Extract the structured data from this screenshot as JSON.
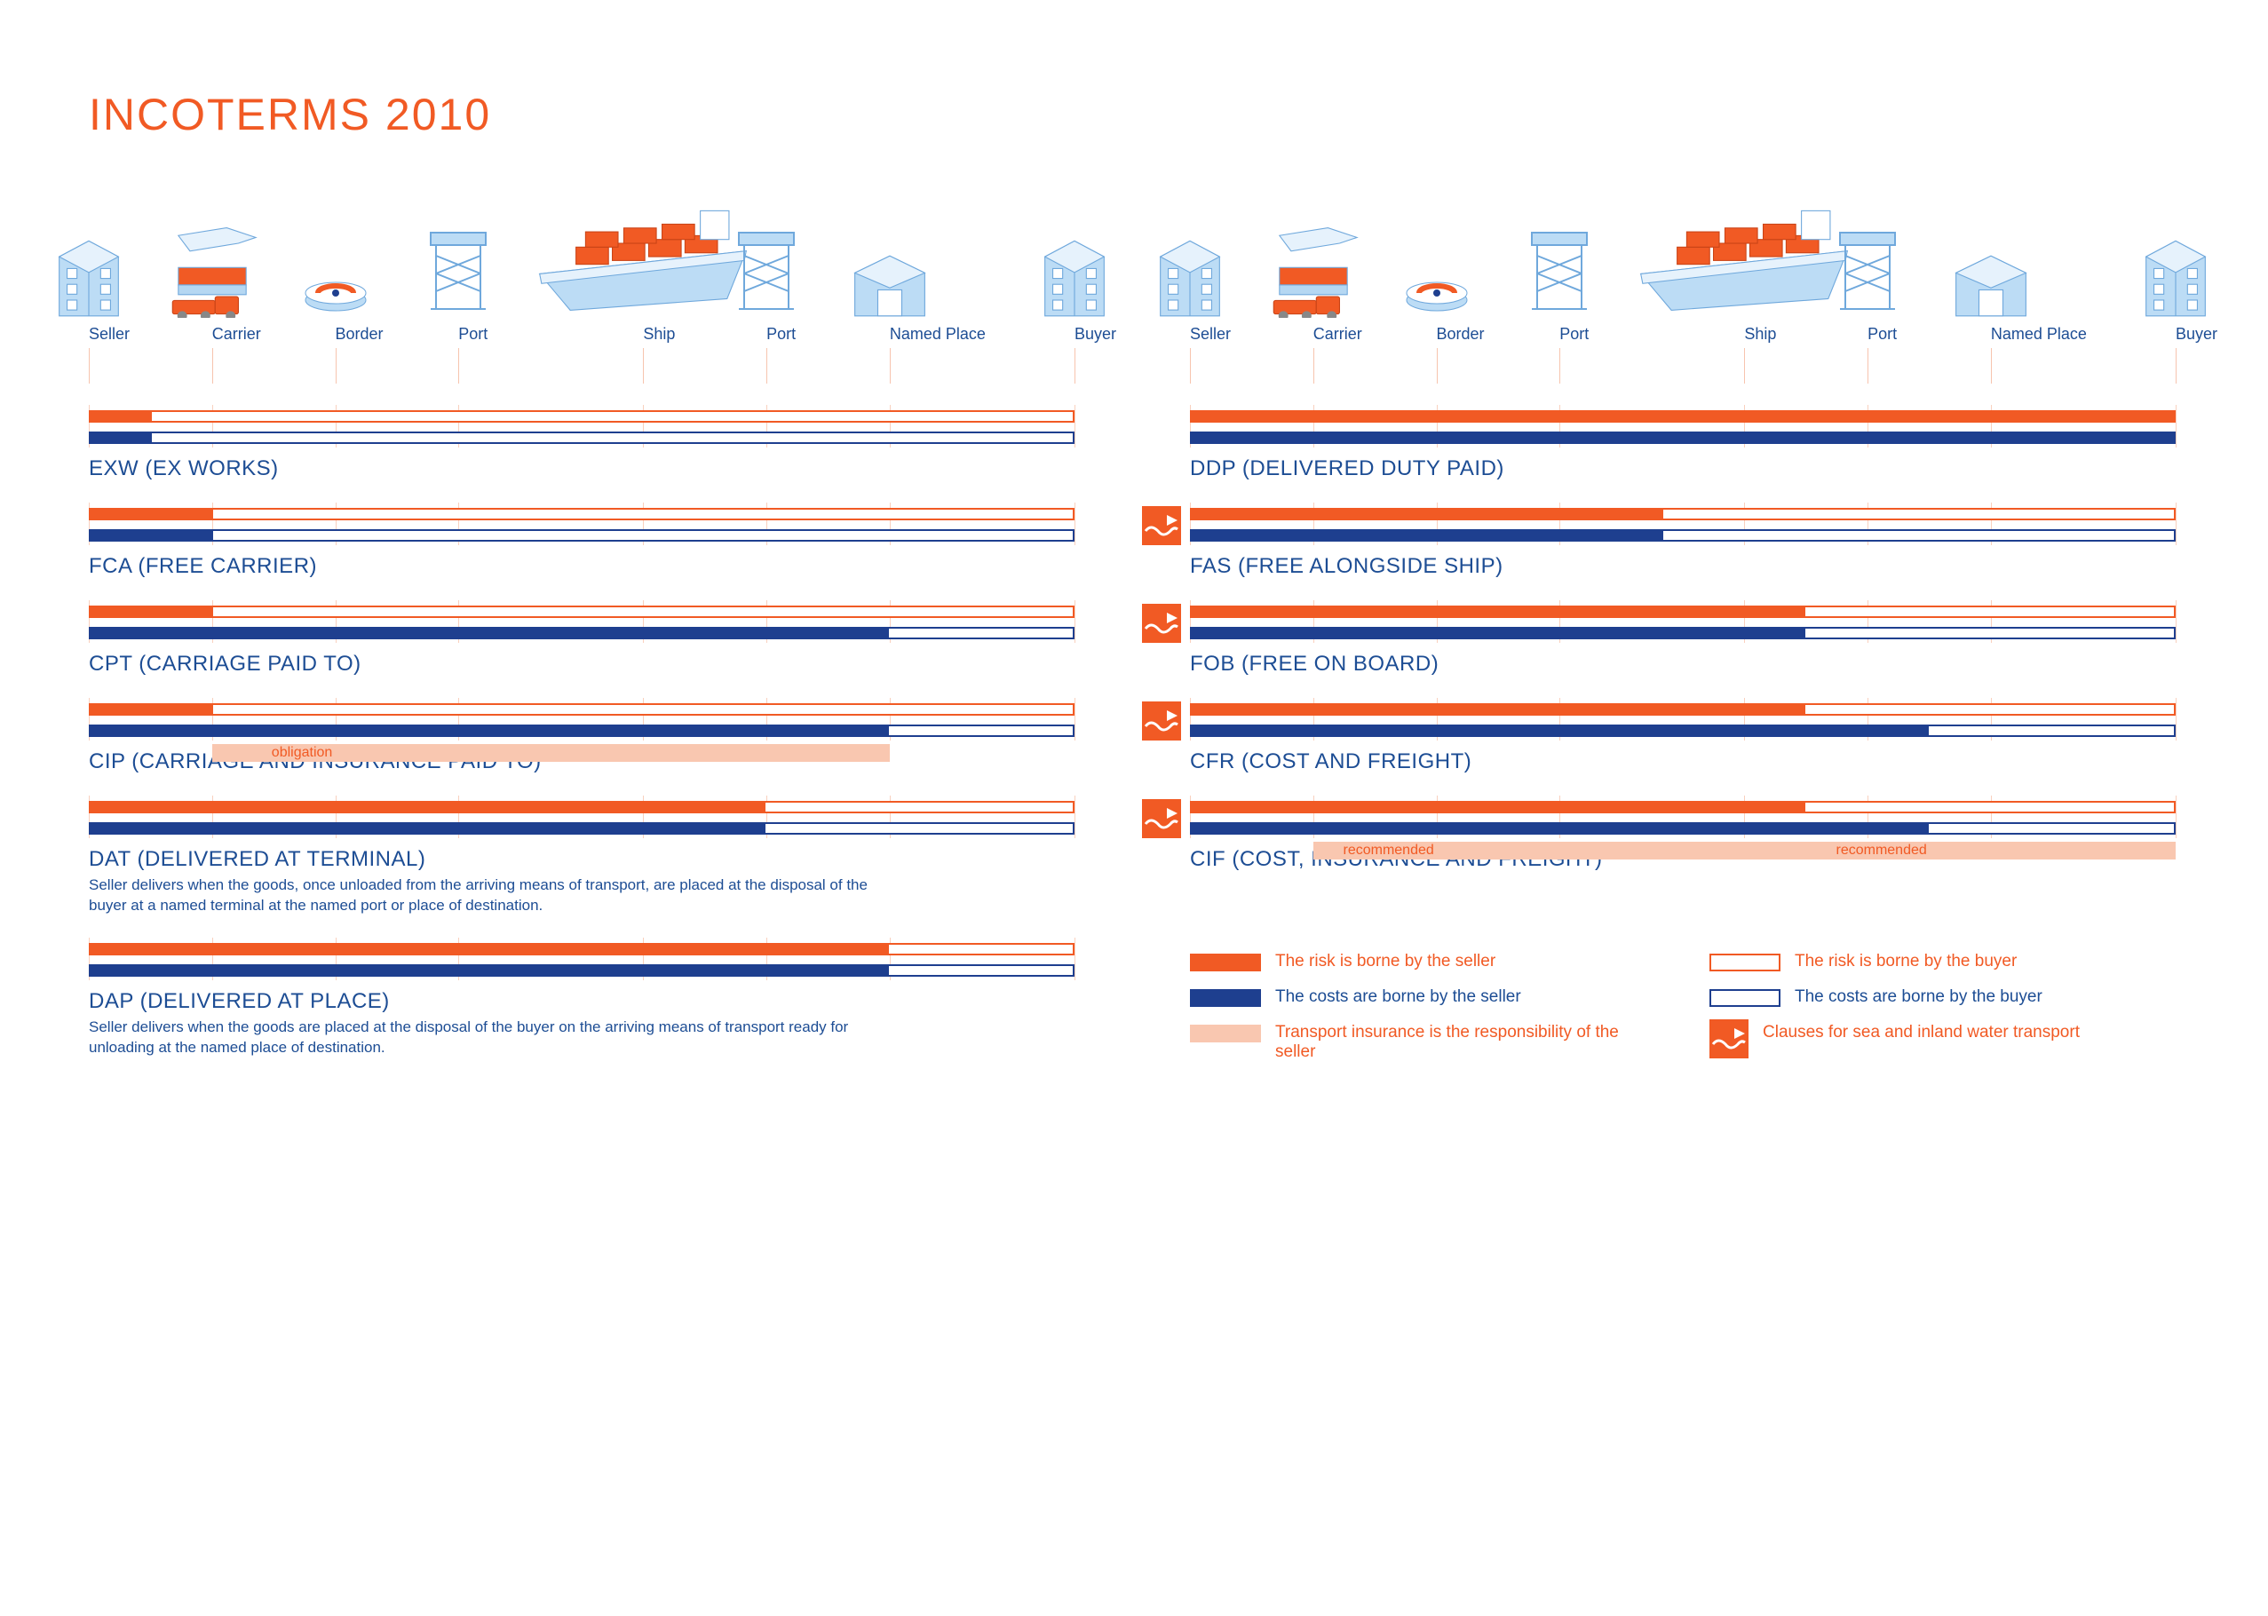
{
  "title": "INCOTERMS 2010",
  "colors": {
    "orange": "#f15a24",
    "blue": "#1e3f8f",
    "ice": "#bcdcf5",
    "pale_orange": "#f9c7b0",
    "outline_orange": "#f15a24",
    "outline_blue": "#1e3f8f",
    "text_blue": "#1d4d94",
    "title_orange": "#f15a24"
  },
  "fonts": {
    "title_size": 50,
    "stage_label_size": 18,
    "term_label_size": 24,
    "desc_size": 17,
    "legend_size": 19
  },
  "stages": [
    {
      "key": "seller",
      "label": "Seller",
      "pct": 0.0
    },
    {
      "key": "carrier",
      "label": "Carrier",
      "pct": 12.5
    },
    {
      "key": "border",
      "label": "Border",
      "pct": 25.0
    },
    {
      "key": "port_out",
      "label": "Port",
      "pct": 37.5
    },
    {
      "key": "ship",
      "label": "Ship",
      "pct": 56.25
    },
    {
      "key": "port_in",
      "label": "Port",
      "pct": 68.75
    },
    {
      "key": "named_place",
      "label": "Named Place",
      "pct": 81.25
    },
    {
      "key": "buyer",
      "label": "Buyer",
      "pct": 100.0
    }
  ],
  "left_terms": [
    {
      "code": "EXW",
      "name": "EX WORKS",
      "risk_pct": 6.25,
      "cost_pct": 6.25,
      "sea": false,
      "desc": "",
      "insurance": null
    },
    {
      "code": "FCA",
      "name": "FREE CARRIER",
      "risk_pct": 12.5,
      "cost_pct": 12.5,
      "sea": false,
      "desc": "",
      "insurance": null
    },
    {
      "code": "CPT",
      "name": "CARRIAGE PAID TO",
      "risk_pct": 12.5,
      "cost_pct": 81.25,
      "sea": false,
      "desc": "",
      "insurance": null
    },
    {
      "code": "CIP",
      "name": "CARRIAGE AND INSURANCE PAID TO",
      "risk_pct": 12.5,
      "cost_pct": 81.25,
      "sea": false,
      "desc": "",
      "insurance": [
        {
          "from_pct": 12.5,
          "to_pct": 81.25,
          "label": "obligation",
          "label_at": 18
        }
      ]
    },
    {
      "code": "DAT",
      "name": "DELIVERED AT TERMINAL",
      "risk_pct": 68.75,
      "cost_pct": 68.75,
      "sea": false,
      "desc": "Seller delivers when the goods, once unloaded from the arriving means of transport, are placed at the disposal of the buyer at a named terminal at the named port or place of destination.",
      "insurance": null
    },
    {
      "code": "DAP",
      "name": "DELIVERED AT PLACE",
      "risk_pct": 81.25,
      "cost_pct": 81.25,
      "sea": false,
      "desc": "Seller delivers when the goods are placed at the disposal of the buyer on the arriving means of transport ready for unloading at the named place of destination.",
      "insurance": null
    }
  ],
  "right_terms": [
    {
      "code": "DDP",
      "name": "DELIVERED DUTY PAID",
      "risk_pct": 100,
      "cost_pct": 100,
      "sea": false,
      "desc": "",
      "insurance": null
    },
    {
      "code": "FAS",
      "name": "FREE ALONGSIDE SHIP",
      "risk_pct": 48,
      "cost_pct": 48,
      "sea": true,
      "desc": "",
      "insurance": null
    },
    {
      "code": "FOB",
      "name": "FREE ON BOARD",
      "risk_pct": 62.5,
      "cost_pct": 62.5,
      "sea": true,
      "desc": "",
      "insurance": null
    },
    {
      "code": "CFR",
      "name": "COST AND FREIGHT",
      "risk_pct": 62.5,
      "cost_pct": 75,
      "sea": true,
      "desc": "",
      "insurance": null
    },
    {
      "code": "CIF",
      "name": "COST, INSURANCE AND FREIGHT",
      "risk_pct": 62.5,
      "cost_pct": 75,
      "sea": true,
      "desc": "",
      "insurance": [
        {
          "from_pct": 12.5,
          "to_pct": 62.5,
          "label": "recommended",
          "label_at": 15
        },
        {
          "from_pct": 62.5,
          "to_pct": 100,
          "label": "recommended",
          "label_at": 65
        }
      ]
    }
  ],
  "legend": {
    "risk_seller": "The risk is borne by the seller",
    "risk_buyer": "The risk is borne by the buyer",
    "cost_seller": "The costs are borne by the seller",
    "cost_buyer": "The costs are borne by the buyer",
    "insurance": "Transport insurance is the responsibility of the seller",
    "sea": "Clauses for sea and inland water transport"
  }
}
